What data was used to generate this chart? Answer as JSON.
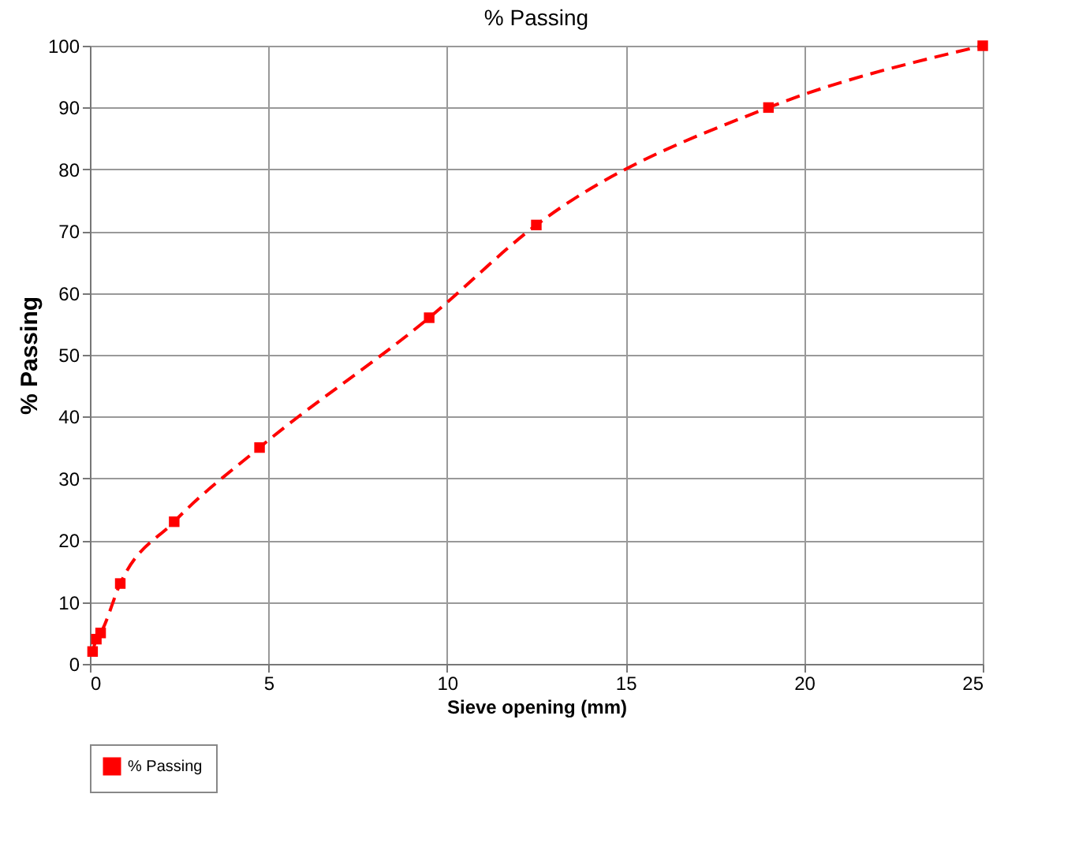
{
  "chart_data": {
    "type": "line",
    "title": "% Passing",
    "xlabel": "Sieve opening (mm)",
    "ylabel": "% Passing",
    "x": [
      0.075,
      0.18,
      0.3,
      0.85,
      2.36,
      4.75,
      9.5,
      12.5,
      19,
      25
    ],
    "series": [
      {
        "name": "% Passing",
        "color": "#ff0000",
        "values": [
          2,
          4,
          5,
          13,
          23,
          35,
          56,
          71,
          90,
          100
        ]
      }
    ],
    "xlim": [
      0,
      25
    ],
    "xticks": [
      0,
      5,
      10,
      15,
      20,
      25
    ],
    "ylim": [
      0,
      100
    ],
    "yticks": [
      0,
      10,
      20,
      30,
      40,
      50,
      60,
      70,
      80,
      90,
      100
    ],
    "grid": true,
    "legend": "bottom",
    "marker": "square",
    "line_style": "dashed"
  }
}
